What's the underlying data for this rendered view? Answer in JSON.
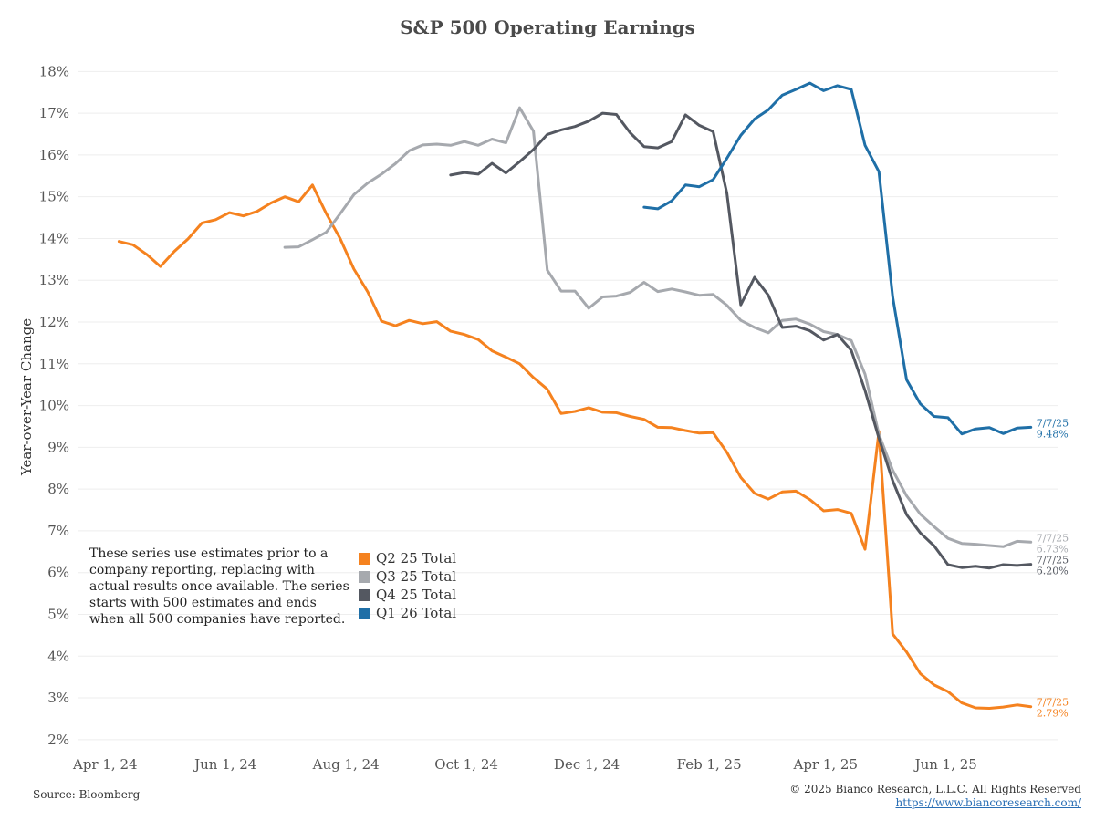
{
  "chart_data": {
    "type": "line",
    "title": "S&P 500 Operating Earnings",
    "ylabel": "Year-over-Year Change",
    "xlabel": "",
    "ylim": [
      1.8,
      18.4
    ],
    "xlim": [
      "2024-03-18",
      "2025-07-28"
    ],
    "yticks": [
      2,
      3,
      4,
      5,
      6,
      7,
      8,
      9,
      10,
      11,
      12,
      13,
      14,
      15,
      16,
      17,
      18
    ],
    "ytick_labels": [
      "2%",
      "3%",
      "4%",
      "5%",
      "6%",
      "7%",
      "8%",
      "9%",
      "10%",
      "11%",
      "12%",
      "13%",
      "14%",
      "15%",
      "16%",
      "17%",
      "18%"
    ],
    "xticks": [
      {
        "date": "2024-04-01",
        "label": "Apr 1, 24"
      },
      {
        "date": "2024-06-01",
        "label": "Jun 1, 24"
      },
      {
        "date": "2024-08-01",
        "label": "Aug 1, 24"
      },
      {
        "date": "2024-10-01",
        "label": "Oct 1, 24"
      },
      {
        "date": "2024-12-01",
        "label": "Dec 1, 24"
      },
      {
        "date": "2025-02-01",
        "label": "Feb 1, 25"
      },
      {
        "date": "2025-04-01",
        "label": "Apr 1, 25"
      },
      {
        "date": "2025-06-01",
        "label": "Jun 1, 25"
      }
    ],
    "grid": "horizontal",
    "series": [
      {
        "name": "Q2 25 Total",
        "color": "#f5821f",
        "end_date_label": "7/7/25",
        "end_value_label": "2.79%",
        "points": [
          [
            "2024-04-08",
            13.93
          ],
          [
            "2024-04-15",
            13.85
          ],
          [
            "2024-04-22",
            13.62
          ],
          [
            "2024-04-29",
            13.33
          ],
          [
            "2024-05-06",
            13.69
          ],
          [
            "2024-05-13",
            13.99
          ],
          [
            "2024-05-20",
            14.37
          ],
          [
            "2024-05-27",
            14.45
          ],
          [
            "2024-06-03",
            14.62
          ],
          [
            "2024-06-10",
            14.54
          ],
          [
            "2024-06-17",
            14.65
          ],
          [
            "2024-06-24",
            14.85
          ],
          [
            "2024-07-01",
            15.0
          ],
          [
            "2024-07-08",
            14.88
          ],
          [
            "2024-07-15",
            15.28
          ],
          [
            "2024-07-22",
            14.6
          ],
          [
            "2024-07-29",
            14.0
          ],
          [
            "2024-08-05",
            13.27
          ],
          [
            "2024-08-12",
            12.72
          ],
          [
            "2024-08-19",
            12.02
          ],
          [
            "2024-08-26",
            11.91
          ],
          [
            "2024-09-02",
            12.04
          ],
          [
            "2024-09-09",
            11.96
          ],
          [
            "2024-09-16",
            12.01
          ],
          [
            "2024-09-23",
            11.78
          ],
          [
            "2024-09-30",
            11.7
          ],
          [
            "2024-10-07",
            11.58
          ],
          [
            "2024-10-14",
            11.31
          ],
          [
            "2024-10-21",
            11.16
          ],
          [
            "2024-10-28",
            11.0
          ],
          [
            "2024-11-04",
            10.67
          ],
          [
            "2024-11-11",
            10.39
          ],
          [
            "2024-11-18",
            9.81
          ],
          [
            "2024-11-25",
            9.86
          ],
          [
            "2024-12-02",
            9.95
          ],
          [
            "2024-12-09",
            9.84
          ],
          [
            "2024-12-16",
            9.83
          ],
          [
            "2024-12-23",
            9.74
          ],
          [
            "2024-12-30",
            9.67
          ],
          [
            "2025-01-06",
            9.48
          ],
          [
            "2025-01-13",
            9.47
          ],
          [
            "2025-01-20",
            9.4
          ],
          [
            "2025-01-27",
            9.34
          ],
          [
            "2025-02-03",
            9.35
          ],
          [
            "2025-02-10",
            8.88
          ],
          [
            "2025-02-17",
            8.28
          ],
          [
            "2025-02-24",
            7.9
          ],
          [
            "2025-03-03",
            7.76
          ],
          [
            "2025-03-10",
            7.93
          ],
          [
            "2025-03-17",
            7.95
          ],
          [
            "2025-03-24",
            7.75
          ],
          [
            "2025-03-31",
            7.48
          ],
          [
            "2025-04-07",
            7.51
          ],
          [
            "2025-04-14",
            7.42
          ],
          [
            "2025-04-21",
            6.56
          ],
          [
            "2025-04-28",
            9.38
          ],
          [
            "2025-05-05",
            4.53
          ],
          [
            "2025-05-12",
            4.1
          ],
          [
            "2025-05-19",
            3.58
          ],
          [
            "2025-05-26",
            3.31
          ],
          [
            "2025-06-02",
            3.15
          ],
          [
            "2025-06-09",
            2.88
          ],
          [
            "2025-06-16",
            2.76
          ],
          [
            "2025-06-23",
            2.75
          ],
          [
            "2025-06-30",
            2.78
          ],
          [
            "2025-07-07",
            2.83
          ],
          [
            "2025-07-14",
            2.79
          ]
        ]
      },
      {
        "name": "Q3 25 Total",
        "color": "#a6a9ae",
        "end_date_label": "7/7/25",
        "end_value_label": "6.73%",
        "points": [
          [
            "2024-07-01",
            13.79
          ],
          [
            "2024-07-08",
            13.8
          ],
          [
            "2024-07-15",
            13.97
          ],
          [
            "2024-07-22",
            14.15
          ],
          [
            "2024-07-29",
            14.59
          ],
          [
            "2024-08-05",
            15.05
          ],
          [
            "2024-08-12",
            15.33
          ],
          [
            "2024-08-19",
            15.54
          ],
          [
            "2024-08-26",
            15.79
          ],
          [
            "2024-09-02",
            16.1
          ],
          [
            "2024-09-09",
            16.24
          ],
          [
            "2024-09-16",
            16.26
          ],
          [
            "2024-09-23",
            16.23
          ],
          [
            "2024-09-30",
            16.32
          ],
          [
            "2024-10-07",
            16.23
          ],
          [
            "2024-10-14",
            16.38
          ],
          [
            "2024-10-21",
            16.29
          ],
          [
            "2024-10-28",
            17.13
          ],
          [
            "2024-11-04",
            16.57
          ],
          [
            "2024-11-11",
            13.24
          ],
          [
            "2024-11-18",
            12.74
          ],
          [
            "2024-11-25",
            12.74
          ],
          [
            "2024-12-02",
            12.33
          ],
          [
            "2024-12-09",
            12.6
          ],
          [
            "2024-12-16",
            12.62
          ],
          [
            "2024-12-23",
            12.71
          ],
          [
            "2024-12-30",
            12.95
          ],
          [
            "2025-01-06",
            12.73
          ],
          [
            "2025-01-13",
            12.79
          ],
          [
            "2025-01-20",
            12.72
          ],
          [
            "2025-01-27",
            12.64
          ],
          [
            "2025-02-03",
            12.66
          ],
          [
            "2025-02-10",
            12.4
          ],
          [
            "2025-02-17",
            12.04
          ],
          [
            "2025-02-24",
            11.87
          ],
          [
            "2025-03-03",
            11.74
          ],
          [
            "2025-03-10",
            12.04
          ],
          [
            "2025-03-17",
            12.07
          ],
          [
            "2025-03-24",
            11.95
          ],
          [
            "2025-03-31",
            11.77
          ],
          [
            "2025-04-07",
            11.7
          ],
          [
            "2025-04-14",
            11.56
          ],
          [
            "2025-04-21",
            10.75
          ],
          [
            "2025-04-28",
            9.31
          ],
          [
            "2025-05-05",
            8.45
          ],
          [
            "2025-05-12",
            7.84
          ],
          [
            "2025-05-19",
            7.4
          ],
          [
            "2025-05-26",
            7.1
          ],
          [
            "2025-06-02",
            6.82
          ],
          [
            "2025-06-09",
            6.7
          ],
          [
            "2025-06-16",
            6.68
          ],
          [
            "2025-06-23",
            6.65
          ],
          [
            "2025-06-30",
            6.62
          ],
          [
            "2025-07-07",
            6.75
          ],
          [
            "2025-07-14",
            6.73
          ]
        ]
      },
      {
        "name": "Q4 25 Total",
        "color": "#545861",
        "end_date_label": "7/7/25",
        "end_value_label": "6.20%",
        "points": [
          [
            "2024-09-23",
            15.52
          ],
          [
            "2024-09-30",
            15.58
          ],
          [
            "2024-10-07",
            15.54
          ],
          [
            "2024-10-14",
            15.8
          ],
          [
            "2024-10-21",
            15.57
          ],
          [
            "2024-10-28",
            15.84
          ],
          [
            "2024-11-04",
            16.13
          ],
          [
            "2024-11-11",
            16.49
          ],
          [
            "2024-11-18",
            16.6
          ],
          [
            "2024-11-25",
            16.68
          ],
          [
            "2024-12-02",
            16.81
          ],
          [
            "2024-12-09",
            17.0
          ],
          [
            "2024-12-16",
            16.97
          ],
          [
            "2024-12-23",
            16.53
          ],
          [
            "2024-12-30",
            16.2
          ],
          [
            "2025-01-06",
            16.17
          ],
          [
            "2025-01-13",
            16.32
          ],
          [
            "2025-01-20",
            16.96
          ],
          [
            "2025-01-27",
            16.71
          ],
          [
            "2025-02-03",
            16.56
          ],
          [
            "2025-02-10",
            15.08
          ],
          [
            "2025-02-17",
            12.41
          ],
          [
            "2025-02-24",
            13.07
          ],
          [
            "2025-03-03",
            12.64
          ],
          [
            "2025-03-10",
            11.87
          ],
          [
            "2025-03-17",
            11.9
          ],
          [
            "2025-03-24",
            11.79
          ],
          [
            "2025-03-31",
            11.57
          ],
          [
            "2025-04-07",
            11.7
          ],
          [
            "2025-04-14",
            11.32
          ],
          [
            "2025-04-21",
            10.36
          ],
          [
            "2025-04-28",
            9.22
          ],
          [
            "2025-05-05",
            8.2
          ],
          [
            "2025-05-12",
            7.39
          ],
          [
            "2025-05-19",
            6.95
          ],
          [
            "2025-05-26",
            6.64
          ],
          [
            "2025-06-02",
            6.19
          ],
          [
            "2025-06-09",
            6.12
          ],
          [
            "2025-06-16",
            6.15
          ],
          [
            "2025-06-23",
            6.11
          ],
          [
            "2025-06-30",
            6.19
          ],
          [
            "2025-07-07",
            6.17
          ],
          [
            "2025-07-14",
            6.2
          ]
        ]
      },
      {
        "name": "Q1 26 Total",
        "color": "#1f6fa7",
        "end_date_label": "7/7/25",
        "end_value_label": "9.48%",
        "points": [
          [
            "2024-12-30",
            14.75
          ],
          [
            "2025-01-06",
            14.71
          ],
          [
            "2025-01-13",
            14.9
          ],
          [
            "2025-01-20",
            15.28
          ],
          [
            "2025-01-27",
            15.24
          ],
          [
            "2025-02-03",
            15.41
          ],
          [
            "2025-02-10",
            15.92
          ],
          [
            "2025-02-17",
            16.47
          ],
          [
            "2025-02-24",
            16.86
          ],
          [
            "2025-03-03",
            17.08
          ],
          [
            "2025-03-10",
            17.43
          ],
          [
            "2025-03-17",
            17.57
          ],
          [
            "2025-03-24",
            17.72
          ],
          [
            "2025-03-31",
            17.54
          ],
          [
            "2025-04-07",
            17.66
          ],
          [
            "2025-04-14",
            17.57
          ],
          [
            "2025-04-21",
            16.23
          ],
          [
            "2025-04-28",
            15.6
          ],
          [
            "2025-05-05",
            12.6
          ],
          [
            "2025-05-12",
            10.62
          ],
          [
            "2025-05-19",
            10.04
          ],
          [
            "2025-05-26",
            9.74
          ],
          [
            "2025-06-02",
            9.71
          ],
          [
            "2025-06-09",
            9.32
          ],
          [
            "2025-06-16",
            9.44
          ],
          [
            "2025-06-23",
            9.47
          ],
          [
            "2025-06-30",
            9.33
          ],
          [
            "2025-07-07",
            9.46
          ],
          [
            "2025-07-14",
            9.48
          ]
        ]
      }
    ],
    "legend_position": "bottom-left"
  },
  "note": "These series use estimates prior to a company reporting, replacing with actual results once available. The series starts with 500 estimates and ends when all 500 companies have reported.",
  "footer": {
    "source": "Source: Bloomberg",
    "copyright": "© 2025 Bianco Research, L.L.C. All Rights Reserved",
    "url": "https://www.biancoresearch.com/"
  }
}
